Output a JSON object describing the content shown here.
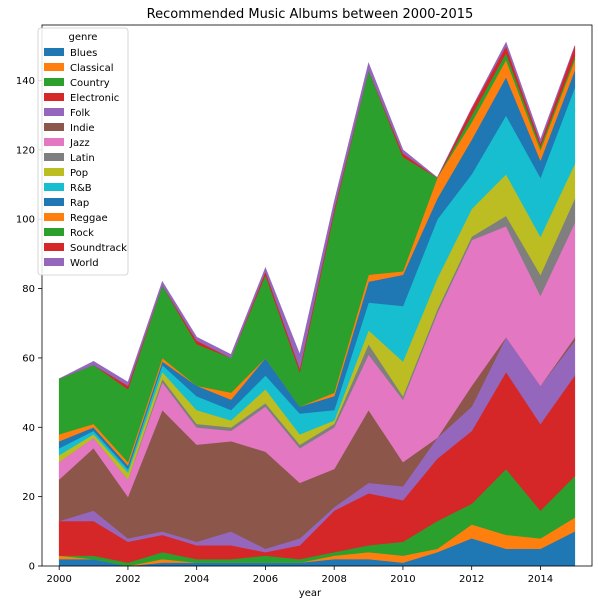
{
  "chart_data": {
    "type": "area",
    "stacked": true,
    "title": "Recommended Music Albums between 2000-2015",
    "xlabel": "year",
    "ylabel": "",
    "xlim": [
      1999.5,
      2015.5
    ],
    "ylim": [
      0,
      156
    ],
    "xticks": [
      2000,
      2002,
      2004,
      2006,
      2008,
      2010,
      2012,
      2014
    ],
    "yticks": [
      0,
      20,
      40,
      60,
      80,
      100,
      120,
      140
    ],
    "grid": false,
    "legend": {
      "title": "genre",
      "placement": "top-left"
    },
    "x": [
      2000,
      2001,
      2002,
      2003,
      2004,
      2005,
      2006,
      2007,
      2008,
      2009,
      2010,
      2011,
      2012,
      2013,
      2014,
      2015
    ],
    "series": [
      {
        "name": "Blues",
        "color": "#1f77b4",
        "values": [
          2,
          2,
          0,
          1,
          1,
          1,
          1,
          1,
          2,
          2,
          1,
          4,
          8,
          5,
          5,
          10
        ]
      },
      {
        "name": "Classical",
        "color": "#ff7f0e",
        "values": [
          1,
          0,
          0,
          1,
          0,
          0,
          0,
          0,
          1,
          2,
          2,
          1,
          4,
          4,
          3,
          4
        ]
      },
      {
        "name": "Country",
        "color": "#2ca02c",
        "values": [
          0,
          1,
          1,
          2,
          1,
          1,
          2,
          1,
          1,
          2,
          4,
          8,
          6,
          19,
          8,
          12
        ]
      },
      {
        "name": "Electronic",
        "color": "#d62728",
        "values": [
          10,
          10,
          6,
          5,
          4,
          4,
          1,
          4,
          12,
          15,
          12,
          18,
          21,
          28,
          25,
          29
        ]
      },
      {
        "name": "Folk",
        "color": "#9467bd",
        "values": [
          0,
          3,
          1,
          1,
          1,
          4,
          1,
          2,
          1,
          3,
          4,
          6,
          7,
          10,
          11,
          10
        ]
      },
      {
        "name": "Indie",
        "color": "#8c564b",
        "values": [
          12,
          18,
          12,
          35,
          28,
          26,
          28,
          16,
          11,
          21,
          7,
          0,
          6,
          0,
          0,
          1
        ]
      },
      {
        "name": "Jazz",
        "color": "#e377c2",
        "values": [
          5,
          3,
          5,
          8,
          5,
          3,
          13,
          10,
          12,
          16,
          18,
          36,
          42,
          32,
          26,
          33
        ]
      },
      {
        "name": "Latin",
        "color": "#7f7f7f",
        "values": [
          0,
          0,
          0,
          1,
          1,
          1,
          1,
          1,
          1,
          3,
          1,
          1,
          1,
          3,
          6,
          7
        ]
      },
      {
        "name": "Pop",
        "color": "#bcbd22",
        "values": [
          2,
          1,
          2,
          2,
          4,
          2,
          4,
          3,
          1,
          4,
          10,
          9,
          8,
          12,
          11,
          10
        ]
      },
      {
        "name": "R&B",
        "color": "#17becf",
        "values": [
          2,
          1,
          1,
          2,
          4,
          3,
          4,
          6,
          3,
          8,
          16,
          17,
          10,
          17,
          17,
          22
        ]
      },
      {
        "name": "Rap",
        "color": "#1f77b4",
        "values": [
          2,
          1,
          1,
          1,
          3,
          3,
          5,
          2,
          4,
          6,
          9,
          6,
          10,
          11,
          5,
          5
        ]
      },
      {
        "name": "Reggae",
        "color": "#ff7f0e",
        "values": [
          2,
          1,
          1,
          1,
          0,
          2,
          0,
          0,
          1,
          2,
          1,
          6,
          5,
          5,
          3,
          3
        ]
      },
      {
        "name": "Rock",
        "color": "#2ca02c",
        "values": [
          16,
          17,
          21,
          21,
          12,
          10,
          24,
          10,
          52,
          59,
          33,
          0,
          2,
          2,
          1,
          1
        ]
      },
      {
        "name": "Soundtrack",
        "color": "#d62728",
        "values": [
          0,
          0,
          1,
          0,
          1,
          0,
          1,
          1,
          1,
          0,
          1,
          0,
          2,
          2,
          1,
          3
        ]
      },
      {
        "name": "World",
        "color": "#9467bd",
        "values": [
          0,
          1,
          1,
          1,
          1,
          1,
          1,
          4,
          2,
          2,
          1,
          0,
          0,
          1,
          1,
          0
        ]
      }
    ]
  }
}
